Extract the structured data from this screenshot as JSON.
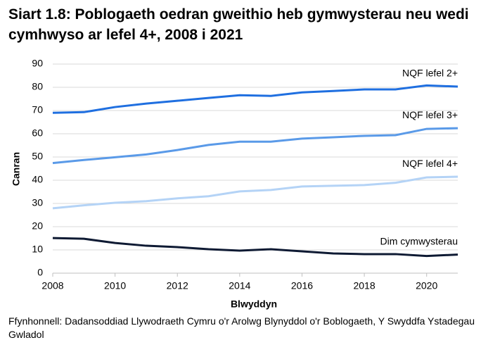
{
  "chart_data": {
    "type": "line",
    "title": "Siart 1.8: Poblogaeth oedran gweithio heb gymwysterau neu wedi cymhwyso ar lefel 4+, 2008 i 2021",
    "x": [
      2008,
      2009,
      2010,
      2011,
      2012,
      2013,
      2014,
      2015,
      2016,
      2017,
      2018,
      2019,
      2020,
      2021
    ],
    "series": [
      {
        "name": "NQF lefel 2+",
        "color": "#1f6fe0",
        "values": [
          69,
          69.3,
          71.5,
          73,
          74.2,
          75.4,
          76.6,
          76.3,
          77.8,
          78.4,
          79.1,
          79.1,
          80.8,
          80.3
        ]
      },
      {
        "name": "NQF lefel 3+",
        "color": "#5a9ae8",
        "values": [
          47.4,
          48.7,
          49.9,
          51.1,
          53,
          55.2,
          56.6,
          56.6,
          57.9,
          58.5,
          59.1,
          59.4,
          62.1,
          62.4
        ]
      },
      {
        "name": "NQF lefel 4+",
        "color": "#b4d3f6",
        "values": [
          27.9,
          29.2,
          30.3,
          31,
          32.2,
          33.1,
          35.2,
          35.8,
          37.3,
          37.6,
          37.9,
          38.9,
          41.2,
          41.5
        ]
      },
      {
        "name": "Dim cymwysterau",
        "color": "#0e1a33",
        "values": [
          15.1,
          14.8,
          13,
          11.8,
          11.2,
          10.3,
          9.7,
          10.3,
          9.4,
          8.5,
          8.2,
          8.2,
          7.4,
          8
        ]
      }
    ],
    "xlabel": "Blwyddyn",
    "ylabel": "Canran",
    "xlim": [
      2008,
      2021
    ],
    "xticks": [
      2008,
      2010,
      2012,
      2014,
      2016,
      2018,
      2020
    ],
    "ylim": [
      0,
      90
    ],
    "yticks": [
      0,
      10,
      20,
      30,
      40,
      50,
      60,
      70,
      80,
      90
    ],
    "grid": true,
    "source": "Ffynhonnell: Dadansoddiad Llywodraeth Cymru o'r Arolwg Blynyddol o'r Boblogaeth, Y Swyddfa Ystadegau Gwladol"
  }
}
